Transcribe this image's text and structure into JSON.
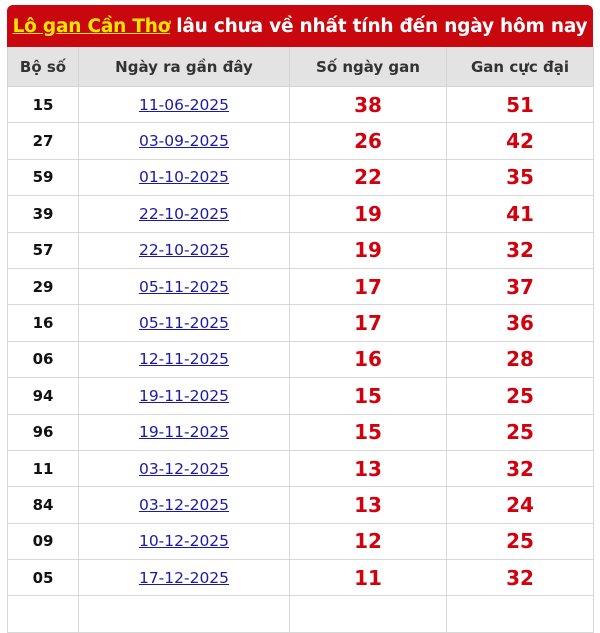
{
  "title": {
    "link_text": "Lô gan Cần Thơ",
    "rest": "lâu chưa về nhất tính đến ngày hôm nay"
  },
  "columns": [
    "Bộ số",
    "Ngày ra gần đây",
    "Số ngày gan",
    "Gan cực đại"
  ],
  "rows": [
    {
      "bo_so": "15",
      "ngay": "11-06-2025",
      "so_ngay_gan": "38",
      "gan_cuc_dai": "51"
    },
    {
      "bo_so": "27",
      "ngay": "03-09-2025",
      "so_ngay_gan": "26",
      "gan_cuc_dai": "42"
    },
    {
      "bo_so": "59",
      "ngay": "01-10-2025",
      "so_ngay_gan": "22",
      "gan_cuc_dai": "35"
    },
    {
      "bo_so": "39",
      "ngay": "22-10-2025",
      "so_ngay_gan": "19",
      "gan_cuc_dai": "41"
    },
    {
      "bo_so": "57",
      "ngay": "22-10-2025",
      "so_ngay_gan": "19",
      "gan_cuc_dai": "32"
    },
    {
      "bo_so": "29",
      "ngay": "05-11-2025",
      "so_ngay_gan": "17",
      "gan_cuc_dai": "37"
    },
    {
      "bo_so": "16",
      "ngay": "05-11-2025",
      "so_ngay_gan": "17",
      "gan_cuc_dai": "36"
    },
    {
      "bo_so": "06",
      "ngay": "12-11-2025",
      "so_ngay_gan": "16",
      "gan_cuc_dai": "28"
    },
    {
      "bo_so": "94",
      "ngay": "19-11-2025",
      "so_ngay_gan": "15",
      "gan_cuc_dai": "25"
    },
    {
      "bo_so": "96",
      "ngay": "19-11-2025",
      "so_ngay_gan": "15",
      "gan_cuc_dai": "25"
    },
    {
      "bo_so": "11",
      "ngay": "03-12-2025",
      "so_ngay_gan": "13",
      "gan_cuc_dai": "32"
    },
    {
      "bo_so": "84",
      "ngay": "03-12-2025",
      "so_ngay_gan": "13",
      "gan_cuc_dai": "24"
    },
    {
      "bo_so": "09",
      "ngay": "10-12-2025",
      "so_ngay_gan": "12",
      "gan_cuc_dai": "25"
    },
    {
      "bo_so": "05",
      "ngay": "17-12-2025",
      "so_ngay_gan": "11",
      "gan_cuc_dai": "32"
    }
  ],
  "colors": {
    "title_bg": "#c8070f",
    "title_link": "#ffe600",
    "value_red": "#d0020e",
    "date_link": "#1a1aa6"
  }
}
